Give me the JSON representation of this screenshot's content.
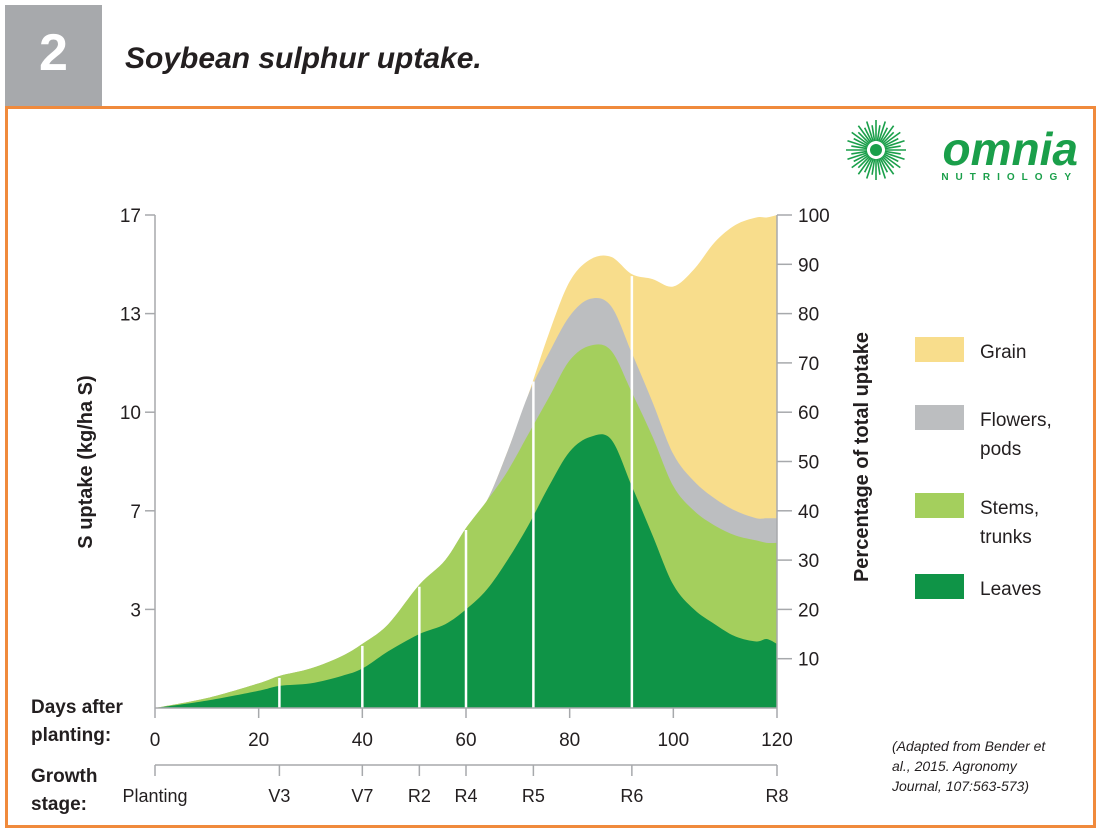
{
  "figure": {
    "number": "2",
    "title": "Soybean sulphur uptake."
  },
  "logo": {
    "name": "omnia",
    "tagline": "NUTRIOLOGY",
    "icon": "sunburst-icon",
    "color": "#1a9f4a"
  },
  "row_labels": {
    "days_line1": "Days after",
    "days_line2": "planting:",
    "growth_line1": "Growth",
    "growth_line2": "stage:"
  },
  "source_note": [
    "(Adapted from Bender et",
    "al., 2015. Agronomy",
    "Journal, 107:563-573)"
  ],
  "colors": {
    "grain": "#f8dd8c",
    "flowers_pods": "#bcbec0",
    "stems_trunks": "#a4cf5d",
    "leaves": "#0f9447",
    "accent_border": "#f08a3c",
    "number_box": "#a7a9ac"
  },
  "chart_data": {
    "type": "area",
    "stacked": true,
    "xlabel": "Days after planting:",
    "ylabel": "S uptake (kg/ha S)",
    "y2label": "Percentage of total uptake",
    "xlim": [
      0,
      120
    ],
    "ylim": [
      0,
      100
    ],
    "x_ticks": [
      0,
      20,
      40,
      60,
      80,
      100,
      120
    ],
    "y_left_ticks": [
      {
        "label": "3",
        "pct": 20
      },
      {
        "label": "7",
        "pct": 40
      },
      {
        "label": "10",
        "pct": 60
      },
      {
        "label": "13",
        "pct": 80
      },
      {
        "label": "17",
        "pct": 100
      }
    ],
    "y_right_ticks": [
      10,
      20,
      30,
      40,
      50,
      60,
      70,
      80,
      90,
      100
    ],
    "growth_stages": [
      {
        "label": "Planting",
        "day": 0
      },
      {
        "label": "V3",
        "day": 24
      },
      {
        "label": "V7",
        "day": 40
      },
      {
        "label": "R2",
        "day": 51
      },
      {
        "label": "R4",
        "day": 60
      },
      {
        "label": "R5",
        "day": 73
      },
      {
        "label": "R6",
        "day": 92
      },
      {
        "label": "R8",
        "day": 120
      }
    ],
    "legend_position": "right",
    "series": [
      {
        "name": "Leaves",
        "x": [
          0,
          10,
          20,
          24,
          30,
          36,
          40,
          45,
          51,
          56,
          60,
          64,
          68,
          72,
          76,
          80,
          84,
          88,
          92,
          96,
          100,
          104,
          108,
          112,
          116,
          118,
          120
        ],
        "values": [
          0,
          1.5,
          3.5,
          4.5,
          5,
          6.5,
          8,
          11.5,
          15,
          17,
          20,
          24,
          30,
          37,
          45,
          52,
          55,
          54.5,
          45,
          35,
          25,
          20,
          17,
          14.5,
          13.5,
          14,
          13
        ]
      },
      {
        "name": "Stems, trunks",
        "x": [
          0,
          10,
          20,
          24,
          30,
          36,
          40,
          45,
          51,
          56,
          60,
          64,
          68,
          72,
          76,
          80,
          84,
          88,
          92,
          96,
          100,
          104,
          108,
          112,
          116,
          118,
          120
        ],
        "values": [
          0,
          0.5,
          1.5,
          2,
          3,
          4,
          5,
          5.5,
          10,
          13,
          16.5,
          18,
          18,
          18.5,
          18,
          18.5,
          18.5,
          18,
          19,
          20,
          20,
          20,
          20,
          20.5,
          20.5,
          19.5,
          20.5
        ]
      },
      {
        "name": "Flowers, pods",
        "x": [
          0,
          10,
          20,
          24,
          30,
          36,
          40,
          45,
          51,
          56,
          60,
          64,
          68,
          72,
          76,
          80,
          84,
          88,
          92,
          96,
          100,
          104,
          108,
          112,
          116,
          118,
          120
        ],
        "values": [
          0,
          0,
          0,
          0,
          0,
          0,
          0,
          0,
          0,
          0,
          0,
          0,
          4,
          8,
          9,
          9,
          9.5,
          9,
          8,
          7,
          6.5,
          6,
          5.5,
          5,
          4.5,
          5,
          5
        ]
      },
      {
        "name": "Grain",
        "x": [
          0,
          10,
          20,
          24,
          30,
          36,
          40,
          45,
          51,
          56,
          60,
          64,
          68,
          72,
          76,
          80,
          84,
          88,
          92,
          96,
          100,
          104,
          108,
          112,
          116,
          118,
          120
        ],
        "values": [
          0,
          0,
          0,
          0,
          0,
          0,
          0,
          0,
          0,
          0,
          0,
          0,
          0,
          0,
          4,
          7,
          8,
          10,
          16,
          25,
          34,
          43,
          52,
          58,
          61,
          61,
          61.5
        ]
      }
    ]
  }
}
